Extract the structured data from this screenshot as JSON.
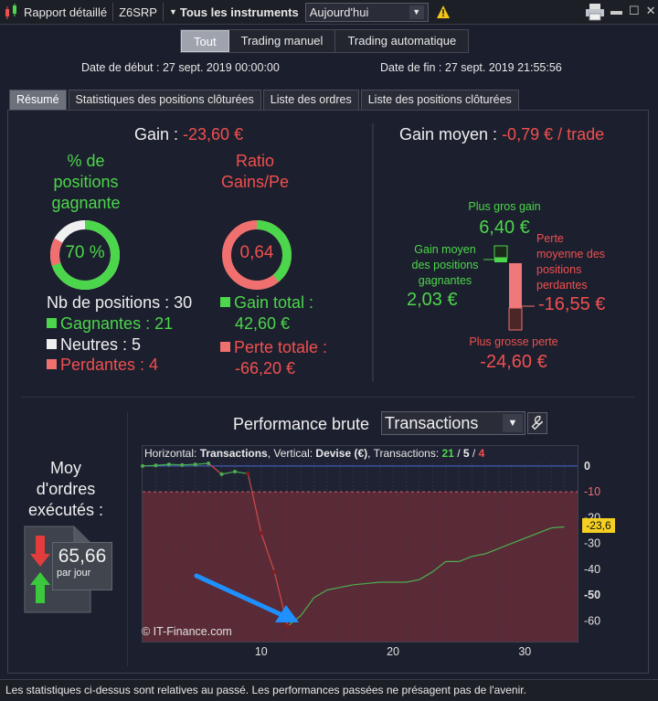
{
  "titlebar": {
    "report_label": "Rapport détaillé",
    "account": "Z6SRP",
    "instruments": "Tous les instruments",
    "period": "Aujourd'hui"
  },
  "modes": [
    {
      "label": "Tout",
      "active": true
    },
    {
      "label": "Trading manuel",
      "active": false
    },
    {
      "label": "Trading automatique",
      "active": false
    }
  ],
  "dates": {
    "start": "Date de début : 27 sept. 2019 00:00:00",
    "end": "Date de fin : 27 sept. 2019 21:55:56"
  },
  "tabs": [
    "Résumé",
    "Statistiques des positions clôturées",
    "Liste des ordres",
    "Liste des positions clôturées"
  ],
  "gain": {
    "label": "Gain : ",
    "value": "-23,60 €"
  },
  "winning_pct": {
    "title_line1": "% de",
    "title_line2": "positions",
    "title_line3": "gagnante",
    "value": "70 %",
    "fraction": 0.7
  },
  "ratio": {
    "title_line1": "Ratio",
    "title_line2": "Gains/Pe",
    "value": "0,64",
    "fraction": 0.39
  },
  "positions": {
    "total": "Nb de positions : 30",
    "winning": "Gagnantes : 21",
    "neutral": "Neutres : 5",
    "losing": "Perdantes : 4"
  },
  "totals": {
    "gain_label": "Gain total :",
    "gain_value": "42,60 €",
    "loss_label": "Perte totale :",
    "loss_value": "-66,20 €"
  },
  "avg_gain": {
    "label": "Gain moyen : ",
    "value": "-0,79 € / trade"
  },
  "boxplot": {
    "max_gain_label": "Plus gros gain",
    "max_gain_value": "6,40 €",
    "avg_win_label_1": "Gain moyen",
    "avg_win_label_2": "des positions",
    "avg_win_label_3": "gagnantes",
    "avg_win_value": "2,03 €",
    "avg_loss_label_1": "Perte",
    "avg_loss_label_2": "moyenne des",
    "avg_loss_label_3": "positions",
    "avg_loss_label_4": "perdantes",
    "avg_loss_value": "-16,55 €",
    "max_loss_label": "Plus grosse perte",
    "max_loss_value": "-24,60 €"
  },
  "orders": {
    "title_line1": "Moy",
    "title_line2": "d'ordres",
    "title_line3": "exécutés :",
    "value": "65,66",
    "unit": "par jour"
  },
  "performance": {
    "title": "Performance brute",
    "selector": "Transactions",
    "info_prefix": "Horizontal: ",
    "info_h": "Transactions",
    "info_mid": ", Vertical: ",
    "info_v": "Devise (€)",
    "info_tx": ", Transactions: ",
    "wins": "21",
    "sep": " / ",
    "neutral": "5",
    "losses": "4",
    "watermark": "© IT-Finance.com"
  },
  "chart_data": {
    "type": "line",
    "x_ticks": [
      "10",
      "20",
      "30"
    ],
    "y_ticks": [
      "0",
      "-10",
      "-20",
      "-30",
      "-40",
      "-50",
      "-60"
    ],
    "xlim": [
      1,
      34
    ],
    "ylim": [
      -68,
      1
    ],
    "current_value": "-23,6",
    "max_drawdown_level": -10,
    "series": [
      {
        "values": [
          [
            1,
            0
          ],
          [
            2,
            0.2
          ],
          [
            3,
            0.6
          ],
          [
            4,
            0.4
          ],
          [
            5,
            0.6
          ],
          [
            6,
            1.0
          ],
          [
            7,
            -3.2
          ],
          [
            8,
            -2.2
          ],
          [
            9,
            -3.0
          ],
          [
            10,
            -26.0
          ],
          [
            11,
            -41.0
          ],
          [
            12,
            -62.0
          ],
          [
            13,
            -58.0
          ],
          [
            14,
            -51.0
          ],
          [
            15,
            -48.0
          ],
          [
            16,
            -47.0
          ],
          [
            17,
            -46.0
          ],
          [
            18,
            -45.5
          ],
          [
            19,
            -45.0
          ],
          [
            20,
            -45.0
          ],
          [
            21,
            -45.0
          ],
          [
            22,
            -44.0
          ],
          [
            23,
            -41.0
          ],
          [
            24,
            -37.0
          ],
          [
            25,
            -37.0
          ],
          [
            26,
            -35.0
          ],
          [
            27,
            -34.0
          ],
          [
            28,
            -32.0
          ],
          [
            29,
            -30.0
          ],
          [
            30,
            -28.0
          ],
          [
            31,
            -26.0
          ],
          [
            32,
            -24.0
          ],
          [
            33,
            -23.6
          ]
        ]
      }
    ]
  },
  "footer": "Les statistiques ci-dessus sont relatives au passé. Les performances passées ne présagent pas de l'avenir.",
  "colors": {
    "gain": "#4cd64c",
    "loss": "#f05050",
    "highlight": "#f5d020"
  }
}
